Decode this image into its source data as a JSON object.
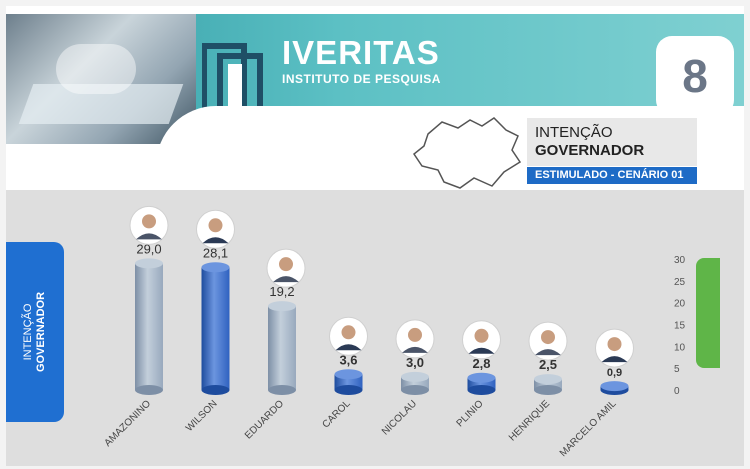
{
  "header": {
    "brand": "IVERITAS",
    "subbrand": "INSTITUTO DE PESQUISA",
    "page_number": "8",
    "title_line1": "INTENÇÃO",
    "title_line2": "GOVERNADOR",
    "subtitle": "ESTIMULADO - CENÁRIO 01"
  },
  "side_label": {
    "line1": "INTENÇÃO",
    "line2": "GOVERNADOR"
  },
  "colors": {
    "teal": "#2f9aa3",
    "blue": "#1f6fd1",
    "bar_gray": "#98a9bd",
    "bar_blue": "#2f62c0",
    "green": "#5fb548"
  },
  "chart_data": {
    "type": "bar",
    "title": "INTENÇÃO GOVERNADOR",
    "subtitle": "ESTIMULADO - CENÁRIO 01",
    "categories": [
      "AMAZONINO",
      "WILSON",
      "EDUARDO",
      "CAROL",
      "NICOLAU",
      "PLINIO",
      "HENRIQUE",
      "MARCELO AMIL"
    ],
    "values": [
      29.0,
      28.1,
      19.2,
      3.6,
      3.0,
      2.8,
      2.5,
      0.9
    ],
    "value_labels": [
      "29,0",
      "28,1",
      "19,2",
      "3,6",
      "3,0",
      "2,8",
      "2,5",
      "0,9"
    ],
    "bar_colors": [
      "gray",
      "blue",
      "gray",
      "blue",
      "gray",
      "blue",
      "gray",
      "blue"
    ],
    "y_ticks": [
      "30",
      "25",
      "20",
      "15",
      "10",
      "5",
      "0"
    ],
    "ylim": [
      0,
      30
    ],
    "grid": false
  }
}
